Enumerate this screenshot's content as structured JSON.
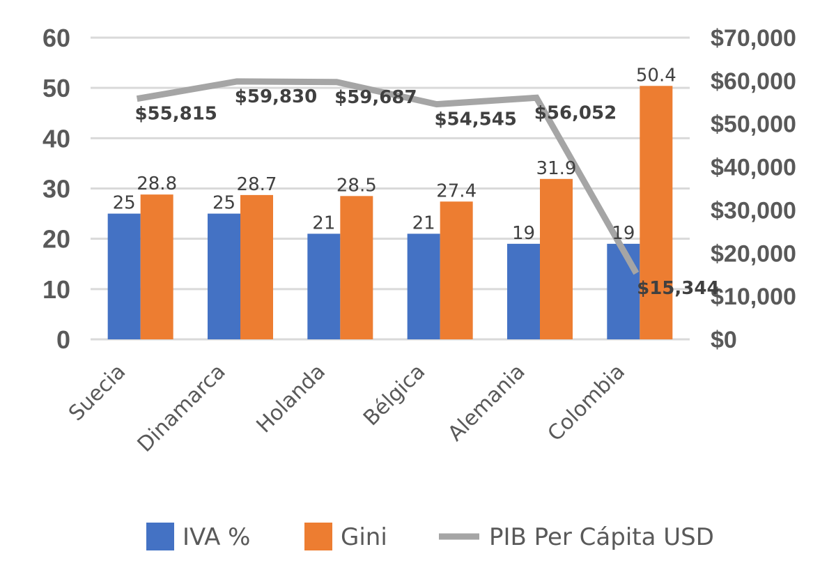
{
  "chart_data": {
    "type": "bar",
    "categories": [
      "Suecia",
      "Dinamarca",
      "Holanda",
      "Bélgica",
      "Alemania",
      "Colombia"
    ],
    "series": [
      {
        "name": "IVA %",
        "type": "bar",
        "axis": "left",
        "color": "#4472C4",
        "values": [
          25,
          25,
          21,
          21,
          19,
          19
        ],
        "value_labels": [
          "25",
          "25",
          "21",
          "21",
          "19",
          "19"
        ]
      },
      {
        "name": "Gini",
        "type": "bar",
        "axis": "left",
        "color": "#ED7D31",
        "values": [
          28.8,
          28.7,
          28.5,
          27.4,
          31.9,
          50.4
        ],
        "value_labels": [
          "28.8",
          "28.7",
          "28.5",
          "27.4",
          "31.9",
          "50.4"
        ]
      },
      {
        "name": "PIB Per Cápita USD",
        "type": "line",
        "axis": "right",
        "color": "#A5A5A5",
        "values": [
          55815,
          59830,
          59687,
          54545,
          56052,
          15344
        ],
        "value_labels": [
          "$55,815",
          "$59,830",
          "$59,687",
          "$54,545",
          "$56,052",
          "$15,344"
        ]
      }
    ],
    "y_left": {
      "range": [
        0,
        60
      ],
      "ticks": [
        0,
        10,
        20,
        30,
        40,
        50,
        60
      ],
      "tick_labels": [
        "0",
        "10",
        "20",
        "30",
        "40",
        "50",
        "60"
      ]
    },
    "y_right": {
      "range": [
        0,
        70000
      ],
      "ticks": [
        0,
        10000,
        20000,
        30000,
        40000,
        50000,
        60000,
        70000
      ],
      "tick_labels": [
        "$0",
        "$10,000",
        "$20,000",
        "$30,000",
        "$40,000",
        "$50,000",
        "$60,000",
        "$70,000"
      ]
    },
    "grid": true,
    "legend_position": "bottom"
  }
}
